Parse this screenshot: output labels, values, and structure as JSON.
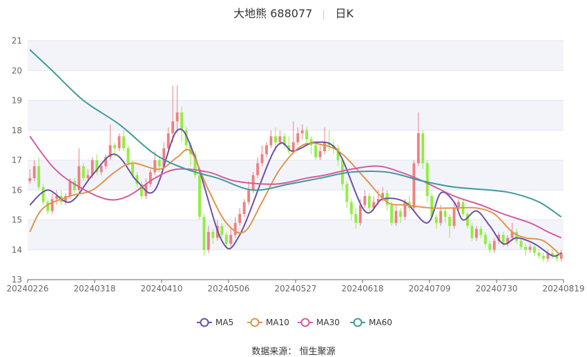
{
  "header": {
    "title": "大地熊 688077",
    "period": "日K"
  },
  "source": {
    "label": "数据来源：",
    "provider": "恒生聚源"
  },
  "colors": {
    "up": "#f08080",
    "down": "#90ee40",
    "MA5": "#6a4fa8",
    "MA10": "#e0944a",
    "MA30": "#d45aa0",
    "MA60": "#3e9a9a",
    "band": "#f3f4fa",
    "grid": "#e3e6f0"
  },
  "chart_data": {
    "type": "candlestick",
    "ylim": [
      13,
      21
    ],
    "yticks": [
      13,
      14,
      15,
      16,
      17,
      18,
      19,
      20,
      21
    ],
    "xtick_labels": [
      "20240226",
      "20240318",
      "20240410",
      "20240506",
      "20240527",
      "20240618",
      "20240709",
      "20240730",
      "20240819"
    ],
    "legend": [
      "MA5",
      "MA10",
      "MA30",
      "MA60"
    ],
    "legend_position": "bottom-center",
    "candles": [
      [
        16.3,
        16.4,
        16.2,
        16.7
      ],
      [
        16.4,
        16.8,
        16.3,
        17.0
      ],
      [
        16.8,
        16.1,
        16.0,
        17.1
      ],
      [
        16.1,
        15.6,
        15.5,
        16.2
      ],
      [
        15.6,
        15.3,
        15.2,
        15.7
      ],
      [
        15.3,
        15.7,
        15.2,
        15.9
      ],
      [
        15.7,
        15.8,
        15.5,
        16.0
      ],
      [
        15.8,
        15.6,
        15.5,
        16.0
      ],
      [
        15.6,
        15.8,
        15.5,
        15.9
      ],
      [
        15.8,
        16.3,
        15.7,
        16.4
      ],
      [
        16.3,
        16.0,
        15.9,
        16.4
      ],
      [
        16.0,
        16.8,
        15.9,
        17.4
      ],
      [
        16.8,
        16.4,
        16.3,
        16.9
      ],
      [
        16.4,
        16.5,
        16.3,
        16.7
      ],
      [
        16.5,
        17.0,
        16.4,
        17.1
      ],
      [
        17.0,
        16.6,
        16.5,
        17.2
      ],
      [
        16.6,
        16.8,
        16.5,
        16.9
      ],
      [
        16.8,
        17.1,
        16.7,
        17.2
      ],
      [
        17.1,
        17.5,
        17.0,
        18.2
      ],
      [
        17.5,
        17.4,
        17.1,
        17.6
      ],
      [
        17.4,
        17.8,
        17.3,
        17.9
      ],
      [
        17.8,
        17.4,
        17.3,
        18.0
      ],
      [
        17.4,
        16.9,
        16.8,
        17.5
      ],
      [
        16.9,
        16.5,
        16.4,
        17.0
      ],
      [
        16.5,
        16.2,
        16.1,
        16.6
      ],
      [
        16.2,
        15.8,
        15.7,
        16.3
      ],
      [
        15.8,
        16.2,
        15.7,
        16.4
      ],
      [
        16.2,
        16.6,
        16.1,
        16.7
      ],
      [
        16.6,
        17.0,
        16.5,
        17.3
      ],
      [
        17.0,
        16.8,
        16.6,
        17.1
      ],
      [
        16.8,
        17.4,
        16.7,
        17.6
      ],
      [
        17.4,
        17.9,
        17.3,
        18.1
      ],
      [
        17.9,
        18.3,
        17.6,
        19.5
      ],
      [
        18.3,
        18.6,
        17.9,
        19.5
      ],
      [
        18.6,
        18.0,
        17.6,
        18.8
      ],
      [
        18.0,
        17.5,
        17.3,
        18.1
      ],
      [
        17.5,
        17.2,
        16.8,
        17.6
      ],
      [
        17.2,
        16.5,
        16.4,
        17.3
      ],
      [
        16.5,
        15.1,
        15.0,
        16.6
      ],
      [
        15.1,
        14.0,
        13.8,
        15.2
      ],
      [
        14.0,
        14.6,
        13.9,
        14.8
      ],
      [
        14.6,
        14.4,
        14.2,
        14.7
      ],
      [
        14.4,
        14.8,
        14.3,
        15.0
      ],
      [
        14.8,
        14.5,
        14.4,
        14.9
      ],
      [
        14.5,
        14.2,
        14.1,
        14.6
      ],
      [
        14.2,
        14.5,
        14.1,
        14.7
      ],
      [
        14.5,
        14.9,
        14.4,
        15.1
      ],
      [
        14.9,
        15.2,
        14.8,
        15.4
      ],
      [
        15.2,
        15.6,
        15.1,
        15.7
      ],
      [
        15.6,
        16.0,
        15.5,
        16.3
      ],
      [
        16.0,
        16.5,
        15.9,
        16.6
      ],
      [
        16.5,
        16.9,
        16.4,
        17.1
      ],
      [
        16.9,
        17.2,
        16.8,
        17.5
      ],
      [
        17.2,
        17.5,
        17.1,
        17.6
      ],
      [
        17.5,
        17.8,
        17.4,
        18.0
      ],
      [
        17.8,
        17.6,
        17.3,
        18.1
      ],
      [
        17.6,
        17.8,
        17.5,
        18.0
      ],
      [
        17.8,
        17.5,
        17.4,
        17.9
      ],
      [
        17.5,
        17.3,
        17.2,
        17.8
      ],
      [
        17.3,
        17.6,
        17.2,
        18.3
      ],
      [
        17.6,
        17.9,
        17.5,
        18.1
      ],
      [
        17.9,
        18.0,
        17.7,
        18.2
      ],
      [
        18.0,
        17.7,
        17.5,
        18.1
      ],
      [
        17.7,
        17.5,
        17.2,
        17.8
      ],
      [
        17.5,
        17.1,
        17.0,
        17.6
      ],
      [
        17.1,
        17.3,
        17.0,
        17.5
      ],
      [
        17.3,
        17.6,
        17.2,
        18.1
      ],
      [
        17.6,
        17.5,
        17.3,
        18.0
      ],
      [
        17.5,
        17.4,
        17.2,
        17.7
      ],
      [
        17.4,
        17.0,
        16.8,
        17.5
      ],
      [
        17.0,
        16.2,
        16.0,
        17.1
      ],
      [
        16.2,
        15.6,
        15.4,
        16.3
      ],
      [
        15.6,
        15.2,
        15.0,
        15.7
      ],
      [
        15.2,
        14.9,
        14.7,
        15.4
      ],
      [
        14.9,
        15.5,
        14.8,
        15.7
      ],
      [
        15.5,
        15.8,
        15.4,
        16.0
      ],
      [
        15.8,
        15.4,
        15.3,
        15.9
      ],
      [
        15.4,
        15.6,
        15.3,
        15.8
      ],
      [
        15.6,
        15.7,
        15.5,
        16.0
      ],
      [
        15.7,
        15.9,
        15.6,
        16.1
      ],
      [
        15.9,
        15.5,
        15.3,
        16.0
      ],
      [
        15.5,
        14.9,
        14.8,
        15.6
      ],
      [
        14.9,
        15.3,
        14.8,
        15.5
      ],
      [
        15.3,
        15.1,
        14.9,
        15.4
      ],
      [
        15.1,
        15.6,
        15.0,
        15.7
      ],
      [
        15.6,
        15.4,
        15.3,
        15.8
      ],
      [
        15.4,
        16.9,
        15.3,
        17.0
      ],
      [
        16.9,
        17.9,
        16.8,
        18.6
      ],
      [
        17.9,
        16.9,
        16.7,
        18.0
      ],
      [
        16.9,
        15.8,
        15.6,
        17.0
      ],
      [
        15.8,
        15.1,
        15.0,
        15.9
      ],
      [
        15.1,
        14.9,
        14.7,
        15.2
      ],
      [
        14.9,
        15.3,
        14.8,
        15.5
      ],
      [
        15.3,
        15.1,
        14.9,
        15.4
      ],
      [
        15.1,
        14.8,
        14.4,
        15.2
      ],
      [
        14.8,
        15.4,
        14.7,
        15.6
      ],
      [
        15.4,
        15.6,
        15.3,
        15.7
      ],
      [
        15.6,
        15.2,
        15.1,
        15.7
      ],
      [
        15.2,
        14.8,
        14.7,
        15.3
      ],
      [
        14.8,
        14.4,
        14.3,
        14.9
      ],
      [
        14.4,
        14.7,
        14.3,
        14.8
      ],
      [
        14.7,
        14.5,
        14.4,
        14.8
      ],
      [
        14.5,
        14.2,
        14.1,
        14.6
      ],
      [
        14.2,
        14.0,
        13.9,
        14.3
      ],
      [
        14.0,
        14.3,
        13.9,
        14.4
      ],
      [
        14.3,
        14.5,
        14.2,
        14.6
      ],
      [
        14.5,
        14.2,
        14.1,
        14.6
      ],
      [
        14.2,
        14.4,
        14.1,
        14.5
      ],
      [
        14.4,
        14.6,
        14.3,
        14.9
      ],
      [
        14.6,
        14.3,
        14.2,
        14.7
      ],
      [
        14.3,
        14.1,
        14.0,
        14.4
      ],
      [
        14.1,
        14.0,
        13.8,
        14.2
      ],
      [
        14.0,
        14.1,
        13.9,
        14.2
      ],
      [
        14.1,
        13.9,
        13.8,
        14.2
      ],
      [
        13.9,
        13.8,
        13.7,
        14.0
      ],
      [
        13.8,
        13.7,
        13.6,
        13.9
      ],
      [
        13.7,
        13.9,
        13.6,
        14.0
      ],
      [
        13.9,
        13.8,
        13.7,
        14.0
      ],
      [
        13.8,
        13.7,
        13.6,
        13.9
      ],
      [
        13.7,
        13.9,
        13.6,
        14.0
      ]
    ],
    "series": [
      {
        "name": "MA5",
        "anchors": [
          [
            0,
            15.5
          ],
          [
            4,
            16.0
          ],
          [
            9,
            15.6
          ],
          [
            14,
            16.5
          ],
          [
            19,
            17.2
          ],
          [
            24,
            16.3
          ],
          [
            28,
            16.0
          ],
          [
            33,
            18.0
          ],
          [
            37,
            17.1
          ],
          [
            43,
            14.3
          ],
          [
            47,
            14.5
          ],
          [
            55,
            17.4
          ],
          [
            59,
            17.3
          ],
          [
            64,
            17.6
          ],
          [
            69,
            17.3
          ],
          [
            75,
            15.3
          ],
          [
            79,
            15.7
          ],
          [
            84,
            15.6
          ],
          [
            89,
            14.9
          ],
          [
            92,
            15.9
          ],
          [
            95,
            15.6
          ],
          [
            97,
            15.0
          ],
          [
            100,
            15.3
          ],
          [
            103,
            14.8
          ],
          [
            106,
            14.2
          ],
          [
            109,
            14.4
          ],
          [
            113,
            14.2
          ],
          [
            117,
            13.8
          ],
          [
            119,
            13.9
          ]
        ]
      },
      {
        "name": "MA10",
        "anchors": [
          [
            0,
            14.6
          ],
          [
            3,
            15.4
          ],
          [
            9,
            15.8
          ],
          [
            14,
            16.0
          ],
          [
            19,
            16.6
          ],
          [
            23,
            16.9
          ],
          [
            29,
            16.7
          ],
          [
            33,
            17.1
          ],
          [
            36,
            17.3
          ],
          [
            40,
            16.0
          ],
          [
            44,
            14.9
          ],
          [
            48,
            14.6
          ],
          [
            52,
            15.6
          ],
          [
            56,
            16.7
          ],
          [
            61,
            17.5
          ],
          [
            66,
            17.5
          ],
          [
            70,
            17.2
          ],
          [
            75,
            16.4
          ],
          [
            80,
            15.6
          ],
          [
            84,
            15.5
          ],
          [
            90,
            15.4
          ],
          [
            95,
            15.4
          ],
          [
            100,
            15.4
          ],
          [
            104,
            15.2
          ],
          [
            108,
            14.6
          ],
          [
            111,
            14.4
          ],
          [
            115,
            14.3
          ],
          [
            119,
            13.8
          ]
        ]
      },
      {
        "name": "MA30",
        "anchors": [
          [
            0,
            17.8
          ],
          [
            5,
            16.8
          ],
          [
            10,
            16.2
          ],
          [
            17,
            15.7
          ],
          [
            22,
            15.8
          ],
          [
            28,
            16.4
          ],
          [
            33,
            16.7
          ],
          [
            40,
            16.6
          ],
          [
            46,
            16.3
          ],
          [
            55,
            16.2
          ],
          [
            62,
            16.4
          ],
          [
            66,
            16.5
          ],
          [
            72,
            16.7
          ],
          [
            78,
            16.8
          ],
          [
            83,
            16.6
          ],
          [
            88,
            16.3
          ],
          [
            95,
            15.8
          ],
          [
            101,
            15.5
          ],
          [
            106,
            15.2
          ],
          [
            112,
            14.9
          ],
          [
            116,
            14.6
          ],
          [
            119,
            14.4
          ]
        ]
      },
      {
        "name": "MA60",
        "anchors": [
          [
            0,
            20.7
          ],
          [
            5,
            20.0
          ],
          [
            12,
            19.0
          ],
          [
            20,
            18.2
          ],
          [
            28,
            17.2
          ],
          [
            35,
            16.7
          ],
          [
            42,
            16.4
          ],
          [
            50,
            16.0
          ],
          [
            58,
            16.2
          ],
          [
            65,
            16.4
          ],
          [
            72,
            16.6
          ],
          [
            80,
            16.6
          ],
          [
            88,
            16.3
          ],
          [
            95,
            16.1
          ],
          [
            103,
            16.0
          ],
          [
            108,
            15.9
          ],
          [
            114,
            15.6
          ],
          [
            119,
            15.1
          ]
        ]
      }
    ]
  }
}
